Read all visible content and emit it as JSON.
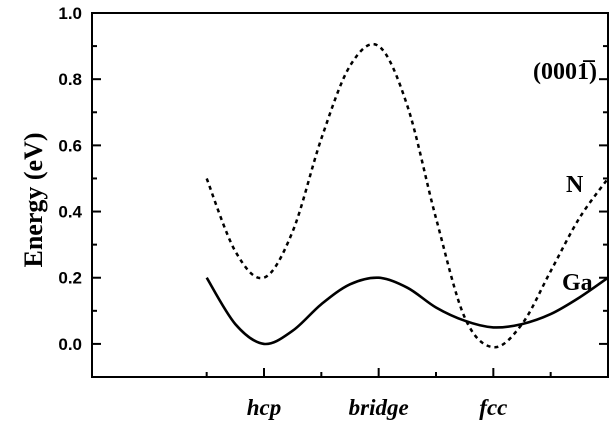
{
  "chart_data": {
    "type": "line",
    "ylabel": "Energy (eV)",
    "annotation": "(0001̅)",
    "categories": [
      "hcp",
      "bridge",
      "fcc"
    ],
    "x_range": [
      -1.5,
      3.0
    ],
    "ylim": [
      -0.1,
      1.0
    ],
    "y_ticks": [
      "0.0",
      "0.2",
      "0.4",
      "0.6",
      "0.8",
      "1.0"
    ],
    "y_tick_values": [
      0.0,
      0.2,
      0.4,
      0.6,
      0.8,
      1.0
    ],
    "grid": false,
    "series": [
      {
        "name": "N",
        "style": "dotted",
        "color": "#000000",
        "x": [
          -0.5,
          -0.25,
          0.0,
          0.25,
          0.5,
          0.75,
          1.0,
          1.25,
          1.5,
          1.75,
          2.0,
          2.25,
          2.5,
          2.75,
          3.0
        ],
        "y": [
          0.5,
          0.28,
          0.2,
          0.34,
          0.62,
          0.84,
          0.9,
          0.72,
          0.38,
          0.08,
          -0.01,
          0.06,
          0.22,
          0.38,
          0.5
        ]
      },
      {
        "name": "Ga",
        "style": "solid",
        "color": "#000000",
        "x": [
          -0.5,
          -0.25,
          0.0,
          0.25,
          0.5,
          0.75,
          1.0,
          1.25,
          1.5,
          1.75,
          2.0,
          2.25,
          2.5,
          2.75,
          3.0
        ],
        "y": [
          0.2,
          0.06,
          0.0,
          0.04,
          0.12,
          0.18,
          0.2,
          0.17,
          0.11,
          0.07,
          0.05,
          0.06,
          0.09,
          0.14,
          0.2
        ]
      }
    ]
  }
}
